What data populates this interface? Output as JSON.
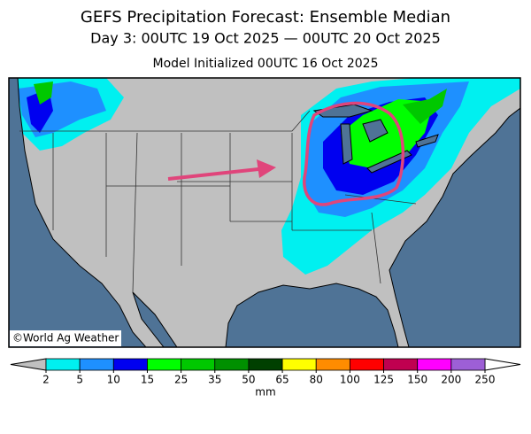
{
  "header": {
    "title": "GEFS Precipitation Forecast: Ensemble Median",
    "subtitle": "Day 3: 00UTC 19 Oct 2025 — 00UTC 20 Oct 2025",
    "initialized": "Model Initialized 00UTC 16 Oct 2025"
  },
  "map": {
    "credit": "©World Ag Weather"
  },
  "colorbar": {
    "ticks": [
      2,
      5,
      10,
      15,
      25,
      35,
      50,
      65,
      80,
      100,
      125,
      150,
      200,
      250
    ],
    "colors": [
      "#00f0f0",
      "#1e90ff",
      "#0000f0",
      "#00ff00",
      "#00c800",
      "#009000",
      "#004000",
      "#ffff00",
      "#ff8c00",
      "#ff0000",
      "#c00050",
      "#ff00ff",
      "#9d5fd6"
    ],
    "under_color": "#c0c0c0",
    "over_color": "#ffffff",
    "unit": "mm"
  }
}
